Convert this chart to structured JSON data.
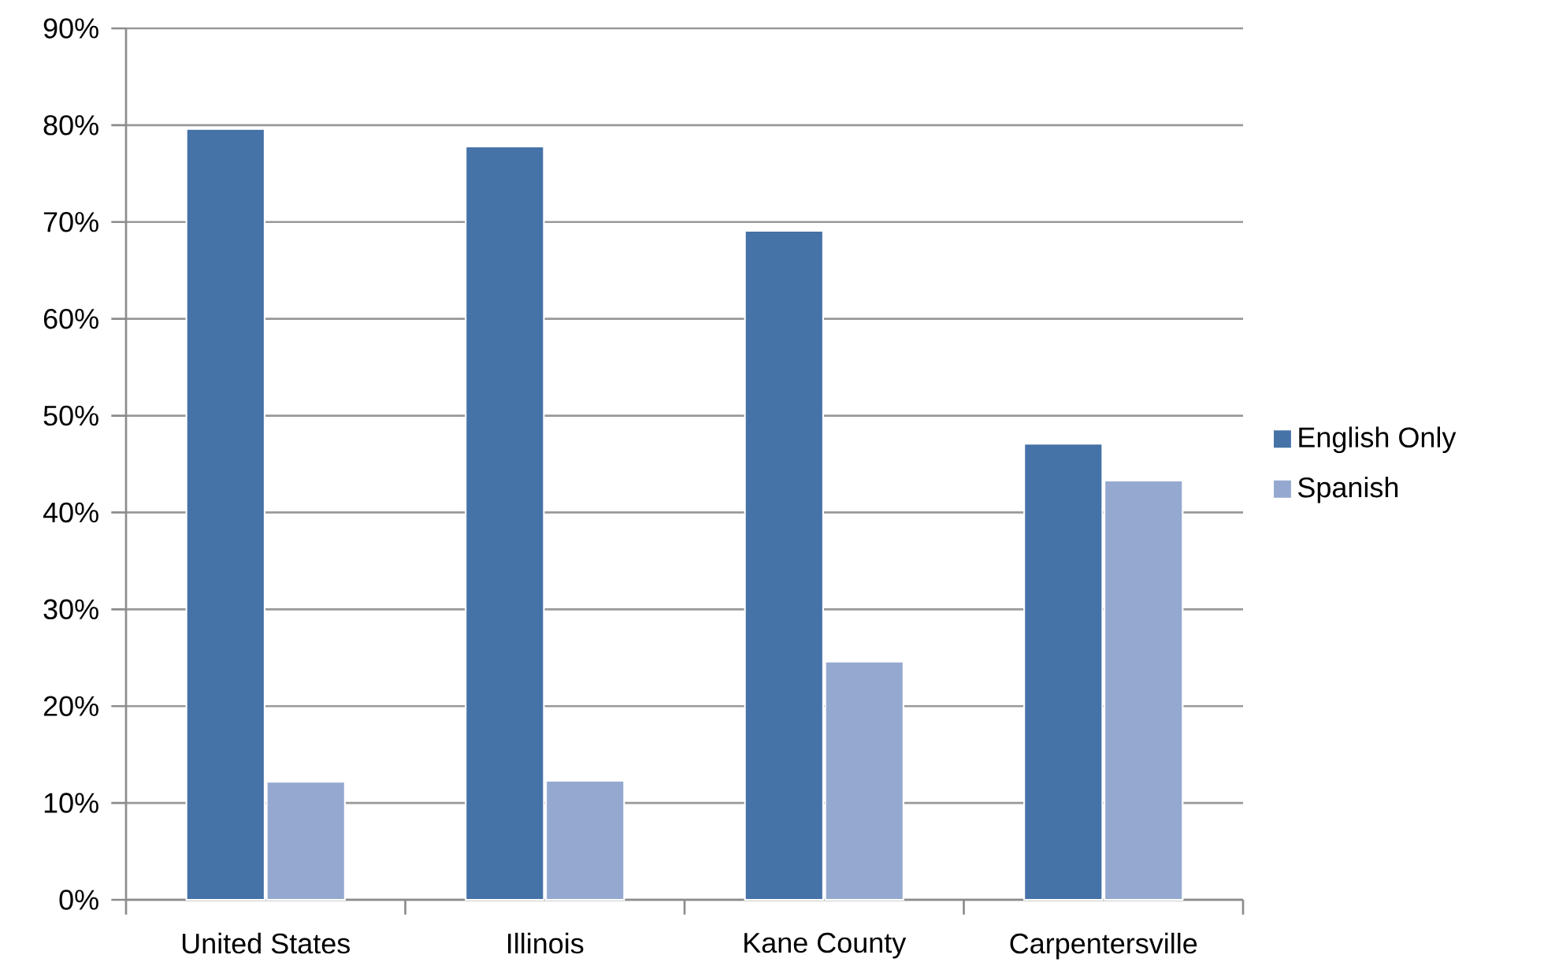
{
  "chart_data": {
    "type": "bar",
    "categories": [
      "United States",
      "Illinois",
      "Kane County",
      "Carpentersville"
    ],
    "series": [
      {
        "name": "English Only",
        "color": "#4572a7",
        "values": [
          79.6,
          77.8,
          69.1,
          47.1
        ]
      },
      {
        "name": "Spanish",
        "color": "#95a9d0",
        "values": [
          12.2,
          12.3,
          24.6,
          43.3
        ]
      }
    ],
    "ylim": [
      0,
      90
    ],
    "yticks": [
      {
        "value": 0,
        "label": "0%"
      },
      {
        "value": 10,
        "label": "10%"
      },
      {
        "value": 20,
        "label": "20%"
      },
      {
        "value": 30,
        "label": "30%"
      },
      {
        "value": 40,
        "label": "40%"
      },
      {
        "value": 50,
        "label": "50%"
      },
      {
        "value": 60,
        "label": "60%"
      },
      {
        "value": 70,
        "label": "70%"
      },
      {
        "value": 80,
        "label": "80%"
      },
      {
        "value": 90,
        "label": "90%"
      }
    ],
    "grid": "y",
    "legend": "right"
  }
}
